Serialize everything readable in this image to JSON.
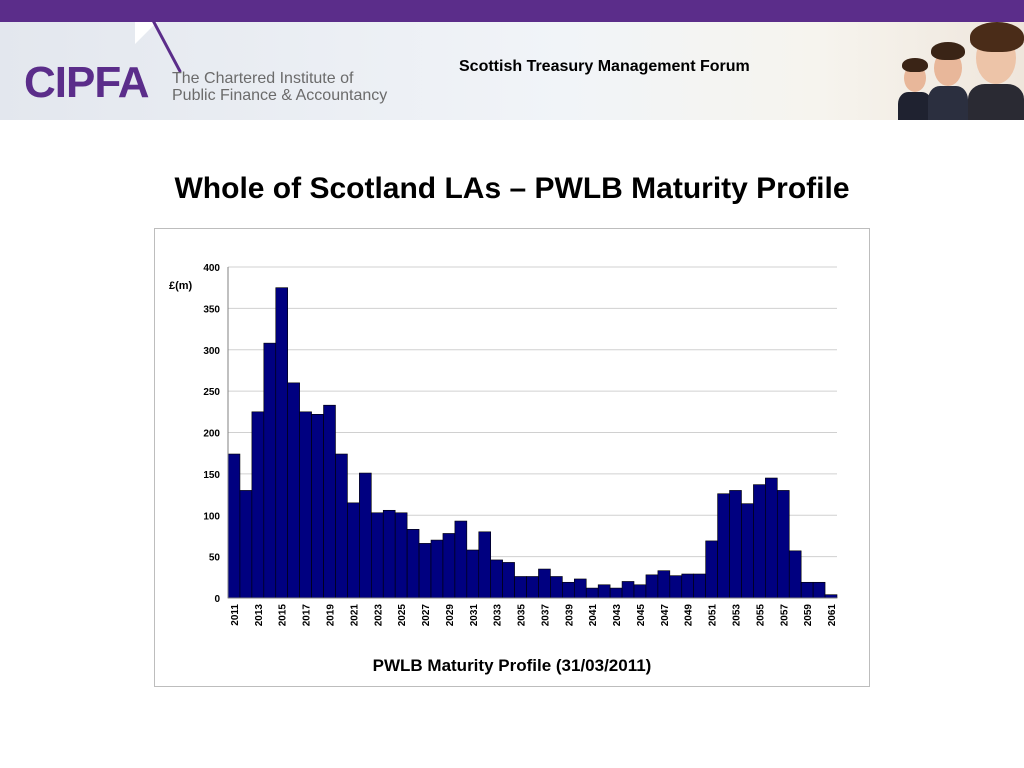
{
  "header": {
    "logo_text": "CIPFA",
    "institute_line1": "The Chartered Institute of",
    "institute_line2": "Public Finance & Accountancy",
    "forum_title": "Scottish Treasury Management Forum"
  },
  "slide": {
    "title": "Whole of Scotland LAs – PWLB Maturity Profile"
  },
  "colors": {
    "brand_purple": "#5b2d8a",
    "bar_fill": "#000080"
  },
  "chart_data": {
    "type": "bar",
    "title": "PWLB Maturity Profile (31/03/2011)",
    "ylabel": "£(m)",
    "xlabel": "",
    "ylim": [
      0,
      400
    ],
    "yticks": [
      0,
      50,
      100,
      150,
      200,
      250,
      300,
      350,
      400
    ],
    "grid": true,
    "categories": [
      2011,
      2012,
      2013,
      2014,
      2015,
      2016,
      2017,
      2018,
      2019,
      2020,
      2021,
      2022,
      2023,
      2024,
      2025,
      2026,
      2027,
      2028,
      2029,
      2030,
      2031,
      2032,
      2033,
      2034,
      2035,
      2036,
      2037,
      2038,
      2039,
      2040,
      2041,
      2042,
      2043,
      2044,
      2045,
      2046,
      2047,
      2048,
      2049,
      2050,
      2051,
      2052,
      2053,
      2054,
      2055,
      2056,
      2057,
      2058,
      2059,
      2060,
      2061
    ],
    "xtick_labels": [
      "2011",
      "2013",
      "2015",
      "2017",
      "2019",
      "2021",
      "2023",
      "2025",
      "2027",
      "2029",
      "2031",
      "2033",
      "2035",
      "2037",
      "2039",
      "2041",
      "2043",
      "2045",
      "2047",
      "2049",
      "2051",
      "2053",
      "2055",
      "2057",
      "2059",
      "2061"
    ],
    "values": [
      174,
      130,
      225,
      308,
      375,
      260,
      225,
      222,
      233,
      174,
      115,
      151,
      103,
      106,
      103,
      83,
      66,
      70,
      78,
      93,
      58,
      80,
      46,
      43,
      26,
      26,
      35,
      26,
      19,
      23,
      12,
      16,
      12,
      20,
      16,
      28,
      33,
      27,
      29,
      29,
      69,
      126,
      130,
      114,
      137,
      145,
      130,
      57,
      19,
      19,
      4
    ]
  }
}
